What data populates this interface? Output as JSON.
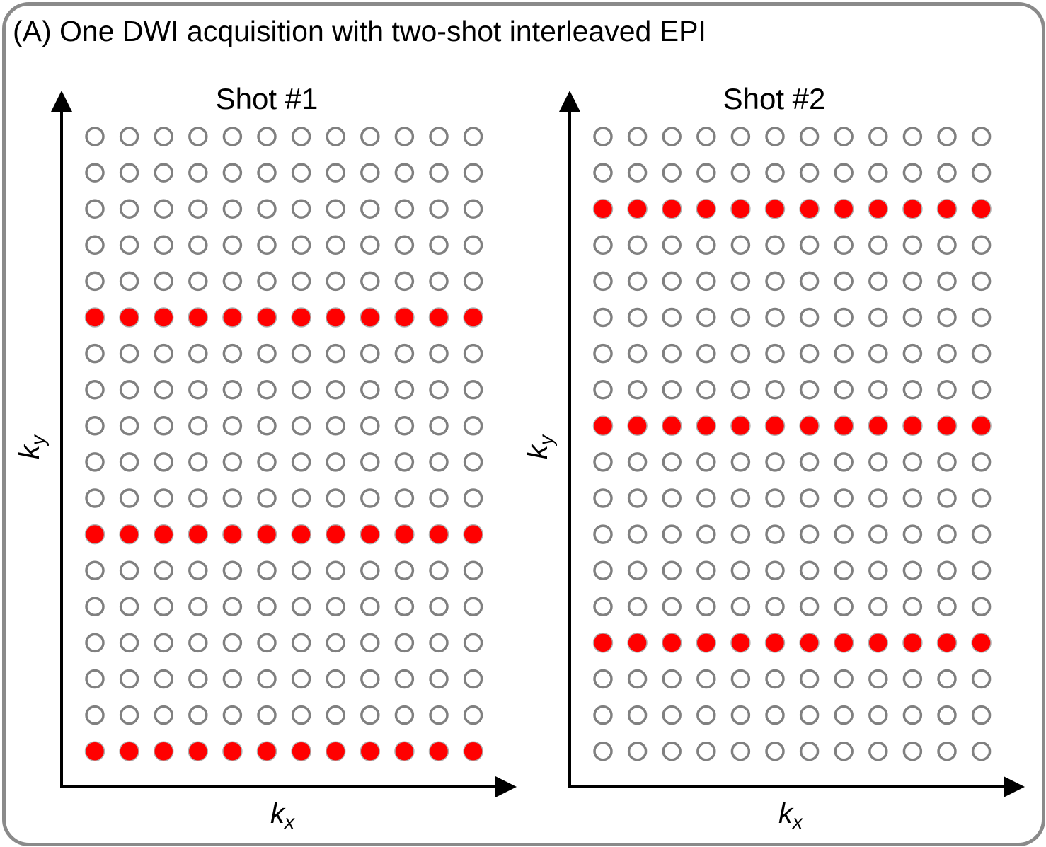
{
  "title": "(A) One DWI acquisition with two-shot interleaved EPI",
  "colors": {
    "sampled": "#ff0000",
    "unsampled": "#808080",
    "axis": "#000000",
    "frame": "#8a8a8a"
  },
  "grid": {
    "rows": 18,
    "cols": 12
  },
  "panels": [
    {
      "title": "Shot #1",
      "x_label": "k",
      "x_sub": "x",
      "y_label": "k",
      "y_sub": "y",
      "sampled_rows": [
        6,
        12,
        18
      ]
    },
    {
      "title": "Shot #2",
      "x_label": "k",
      "x_sub": "x",
      "y_label": "k",
      "y_sub": "y",
      "sampled_rows": [
        3,
        9,
        15
      ]
    }
  ]
}
